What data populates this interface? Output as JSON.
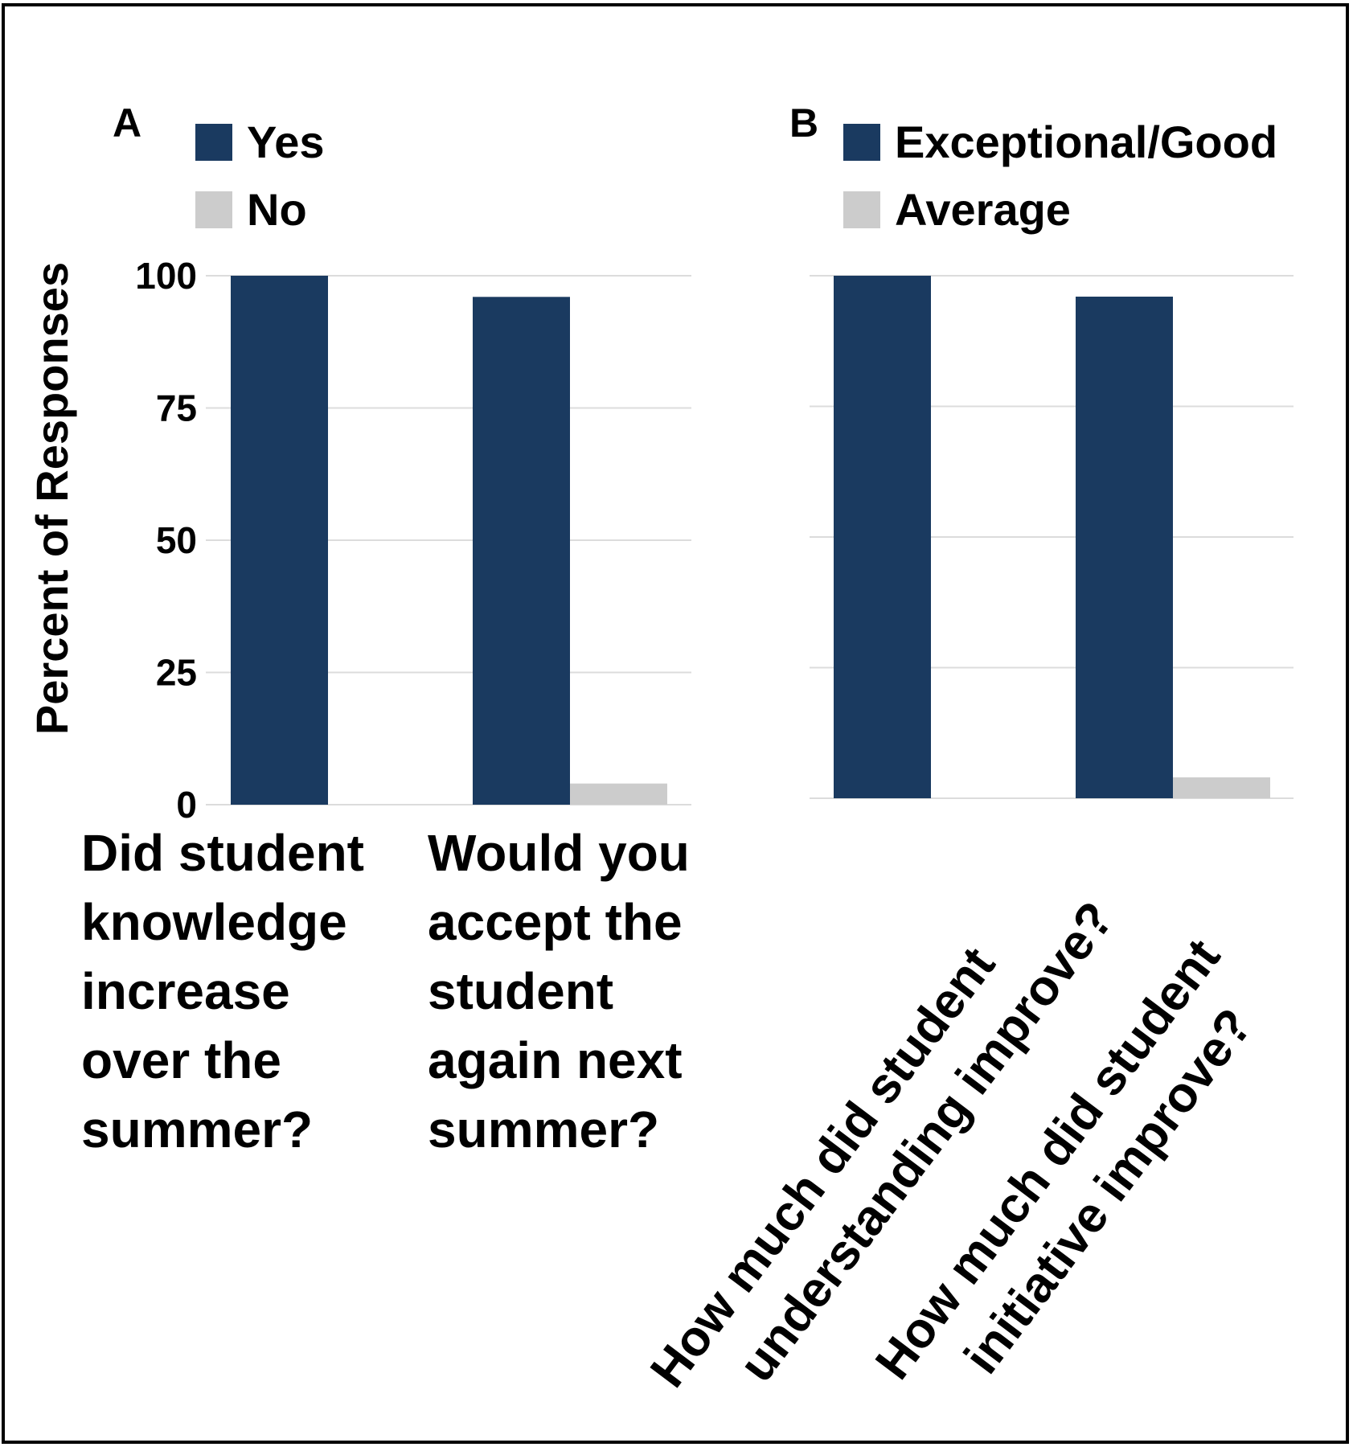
{
  "figure": {
    "panel_a_label": "A",
    "panel_b_label": "B",
    "ylabel": "Percent of Responses"
  },
  "chart_data": [
    {
      "type": "bar",
      "panel": "A",
      "categories": [
        [
          "Did student",
          "knowledge",
          "increase",
          "over the",
          "summer?"
        ],
        [
          "Would you",
          "accept the",
          "student",
          "again next",
          "summer?"
        ]
      ],
      "series": [
        {
          "name": "Yes",
          "values": [
            100,
            96
          ],
          "color": "#1a3a60"
        },
        {
          "name": "No",
          "values": [
            0,
            4
          ],
          "color": "#cccccc"
        }
      ],
      "ylabel": "Percent of Responses",
      "ylim": [
        0,
        100
      ],
      "yticks": [
        "0",
        "25",
        "50",
        "75",
        "100"
      ],
      "grid": true,
      "legend_position": "top-left"
    },
    {
      "type": "bar",
      "panel": "B",
      "categories": [
        [
          "How much did student",
          "understanding improve?"
        ],
        [
          "How much did student",
          "initiative improve?"
        ]
      ],
      "series": [
        {
          "name": "Exceptional/Good",
          "values": [
            100,
            96
          ],
          "color": "#1a3a60"
        },
        {
          "name": "Average",
          "values": [
            0,
            4
          ],
          "color": "#cccccc"
        }
      ],
      "ylim": [
        0,
        100
      ],
      "grid": true,
      "legend_position": "top-left"
    }
  ]
}
